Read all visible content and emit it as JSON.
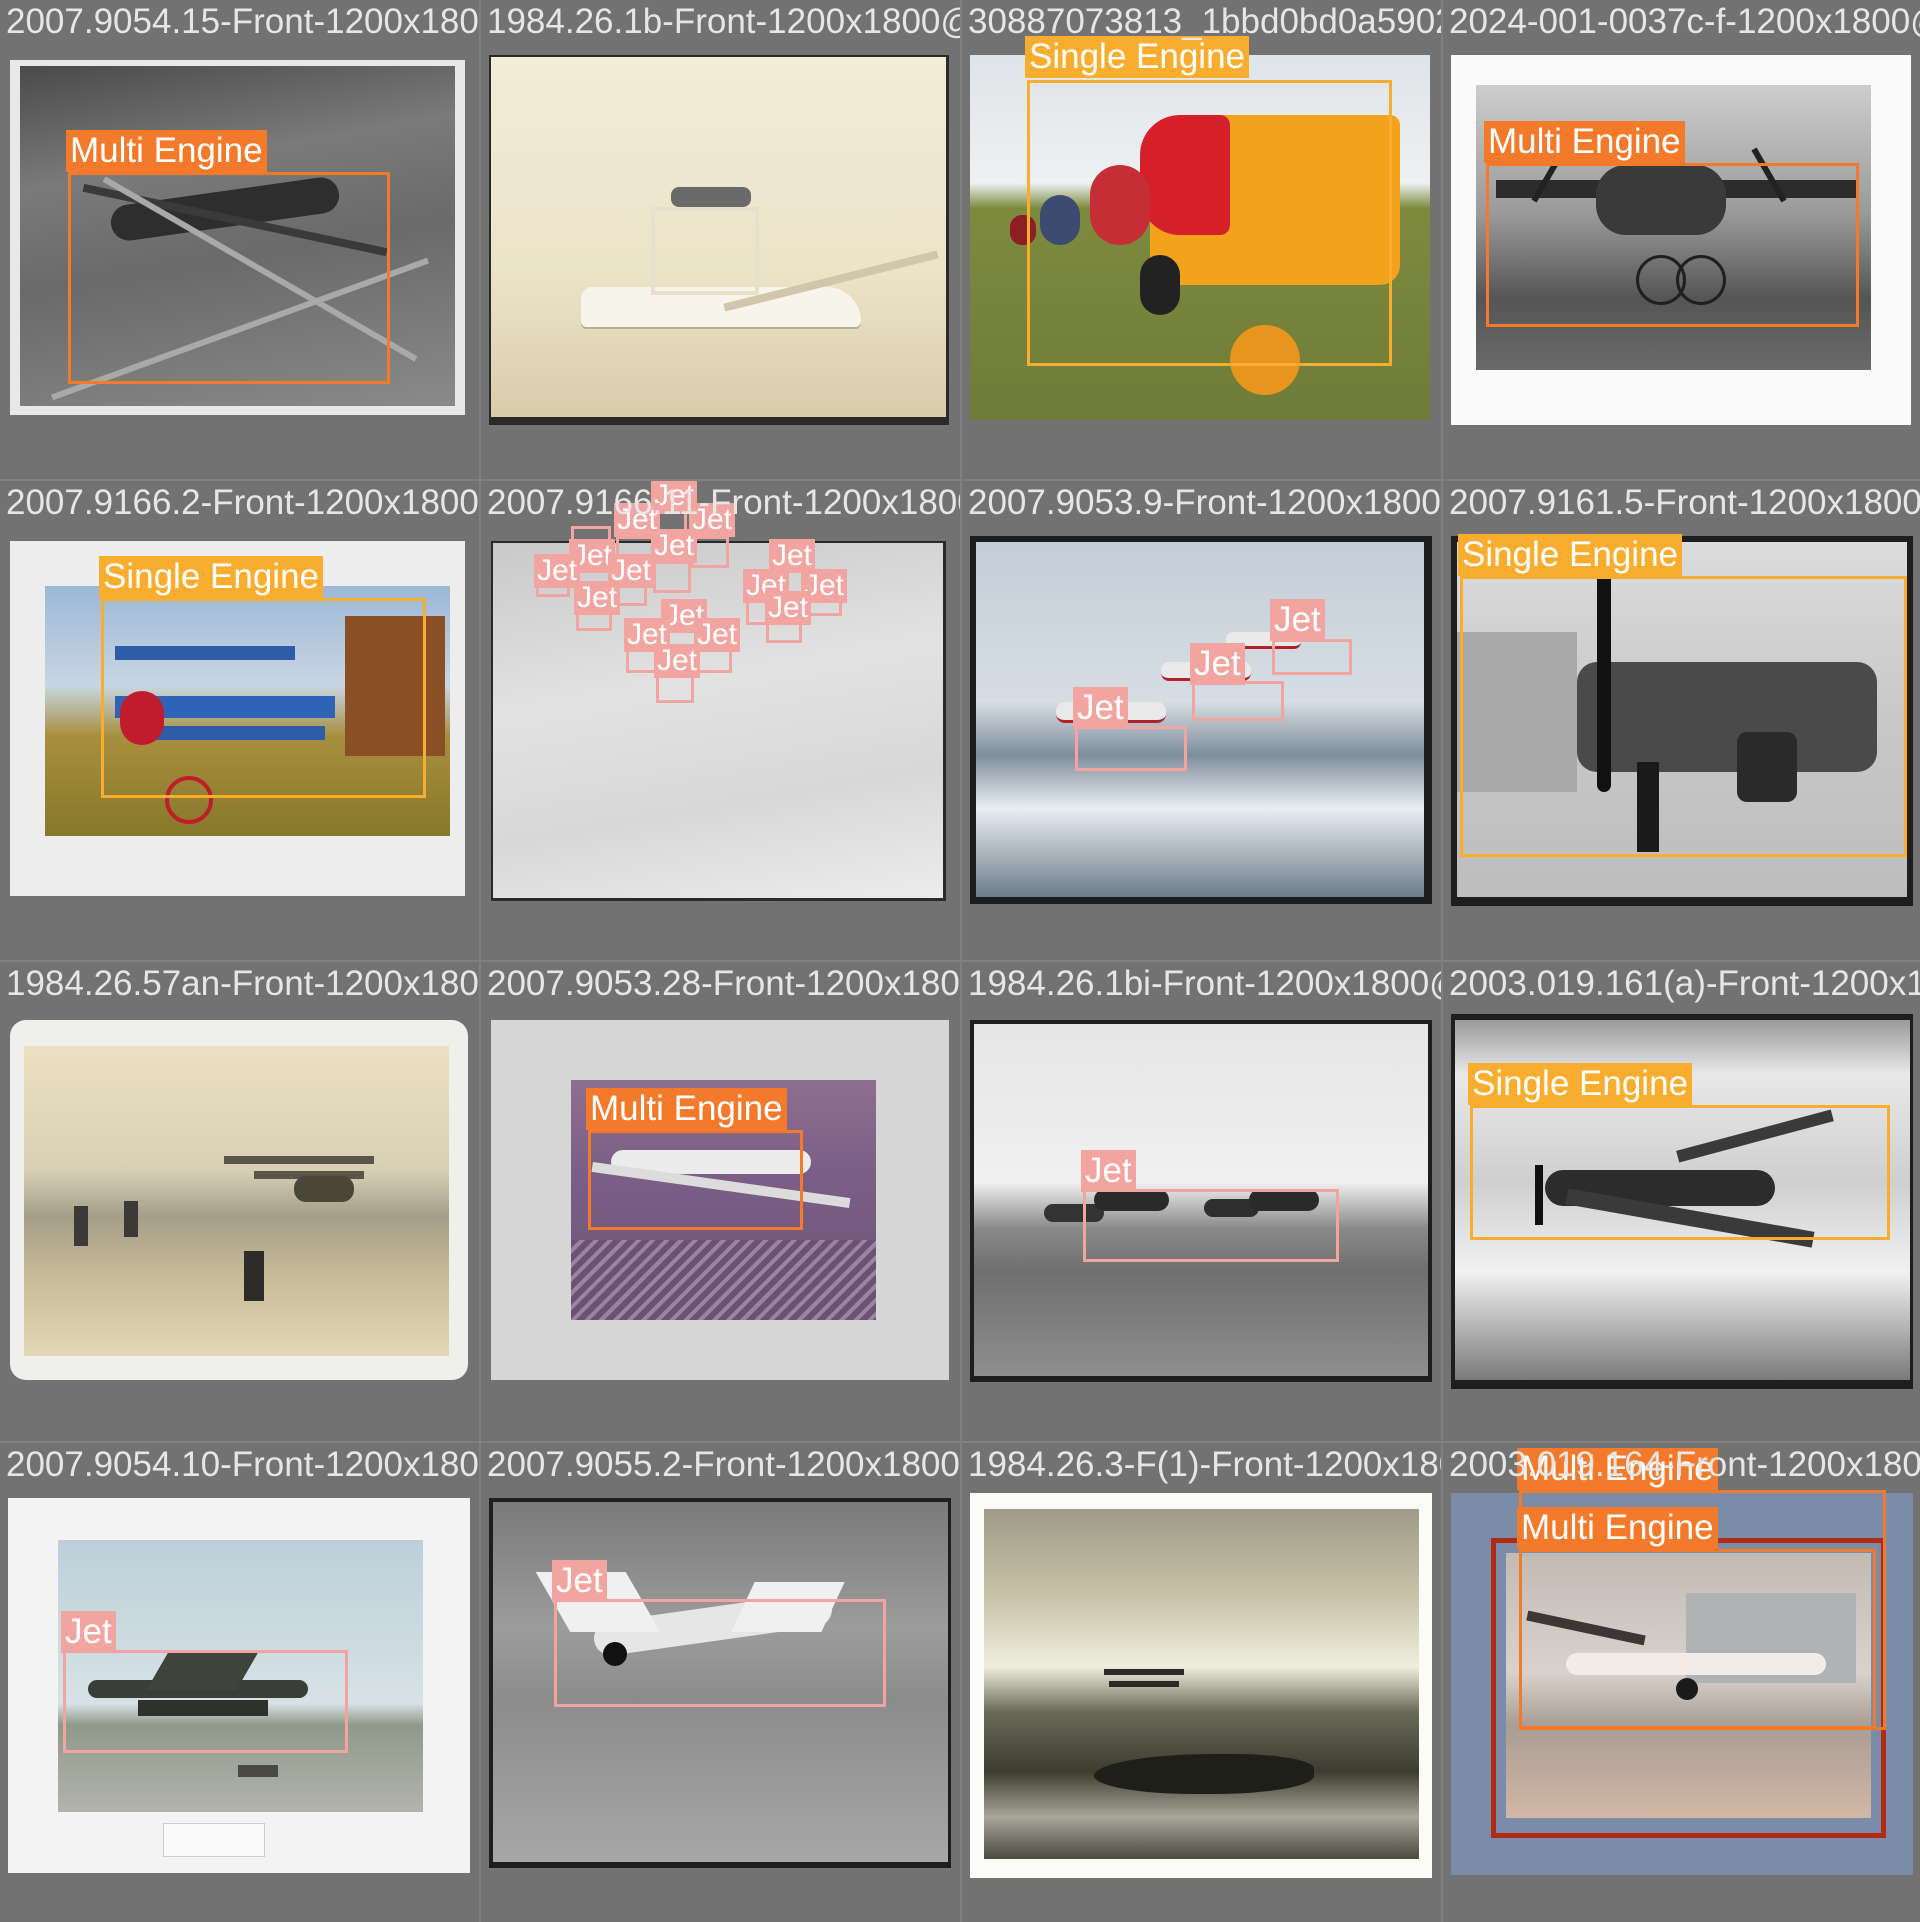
{
  "colors": {
    "multi_engine": "#f47a2b",
    "single_engine": "#f8ad2e",
    "jet": "#f2a5a0",
    "background": "#808080"
  },
  "tiles": [
    {
      "filename": "2007.9054.15-Front-1200x1800@300dpi.png",
      "label": "Multi Engine",
      "cls": "multi"
    },
    {
      "filename": "1984.26.1b-Front-1200x1800@300dpi.png",
      "label": "",
      "cls": "none"
    },
    {
      "filename": "30887073813_1bbd0bd0a5902.jpg",
      "label": "Single Engine",
      "cls": "single"
    },
    {
      "filename": "2024-001-0037c-f-1200x1800@300dpi.png",
      "label": "Multi Engine",
      "cls": "multi"
    },
    {
      "filename": "2007.9166.2-Front-1200x1800@300dpi.png",
      "label": "Single Engine",
      "cls": "single"
    },
    {
      "filename": "2007.9166.11-Front-1200x1800@300dpi.png",
      "label": "Jet",
      "cls": "jet"
    },
    {
      "filename": "2007.9053.9-Front-1200x1800@300dpi.png",
      "label": "Jet",
      "cls": "jet"
    },
    {
      "filename": "2007.9161.5-Front-1200x1800@300dpi.png",
      "label": "Single Engine",
      "cls": "single"
    },
    {
      "filename": "1984.26.57an-Front-1200x1800@300dpi.png",
      "label": "",
      "cls": "none"
    },
    {
      "filename": "2007.9053.28-Front-1200x1800@300dpi.png",
      "label": "Multi Engine",
      "cls": "multi"
    },
    {
      "filename": "1984.26.1bi-Front-1200x1800@300dpi.png",
      "label": "Jet",
      "cls": "jet"
    },
    {
      "filename": "2003.019.161(a)-Front-1200x1800@300dpi.png",
      "label": "Single Engine",
      "cls": "single"
    },
    {
      "filename": "2007.9054.10-Front-1200x1800@300dpi.png",
      "label": "Jet",
      "cls": "jet"
    },
    {
      "filename": "2007.9055.2-Front-1200x1800@300dpi.png",
      "label": "Jet",
      "cls": "jet"
    },
    {
      "filename": "1984.26.3-F(1)-Front-1200x1800@300dpi.png",
      "label": "",
      "cls": "none"
    },
    {
      "filename": "2003.019.164-Front-1200x1800@300dpi.png",
      "label": "Multi Engine",
      "cls": "multi"
    }
  ]
}
